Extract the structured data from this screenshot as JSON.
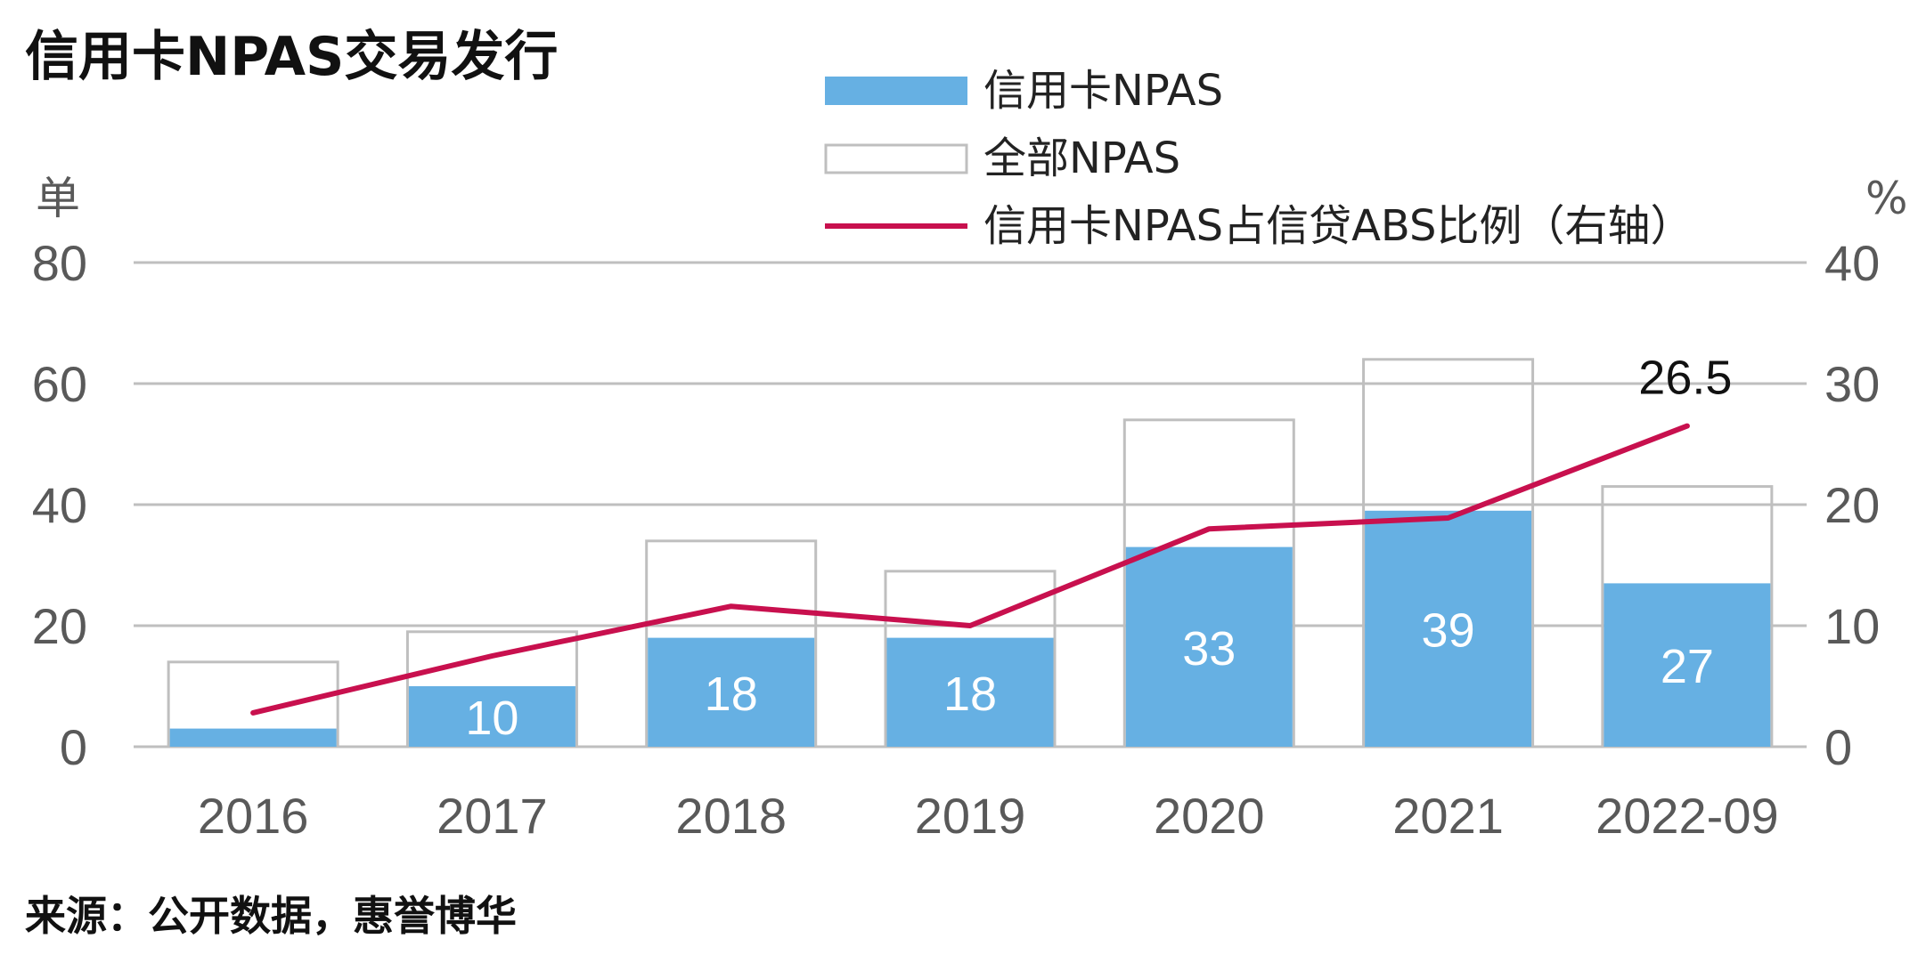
{
  "title": "信用卡NPAS交易发行",
  "source": "来源：公开数据，惠誉博华",
  "colors": {
    "card_bar": "#66b0e3",
    "total_bar_border": "#bfbfbf",
    "ratio_line": "#c8104e",
    "grid": "#bfbfbf"
  },
  "chart_data": {
    "type": "bar",
    "categories": [
      "2016",
      "2017",
      "2018",
      "2019",
      "2020",
      "2021",
      "2022-09"
    ],
    "ylabel": "单",
    "y2label": "%",
    "ylim": [
      0,
      80
    ],
    "y2lim": [
      0,
      40
    ],
    "yticks": [
      "0",
      "20",
      "40",
      "60",
      "80"
    ],
    "y2ticks": [
      "0",
      "10",
      "20",
      "30",
      "40"
    ],
    "grid": true,
    "legend_position": "top-center",
    "series": [
      {
        "name": "信用卡NPAS",
        "type": "bar",
        "axis": "left",
        "values": [
          3,
          10,
          18,
          18,
          33,
          39,
          27
        ],
        "labels": [
          "",
          "10",
          "18",
          "18",
          "33",
          "39",
          "27"
        ]
      },
      {
        "name": "全部NPAS",
        "type": "bar-outline",
        "axis": "left",
        "values": [
          14,
          19,
          34,
          29,
          54,
          64,
          43
        ]
      },
      {
        "name": "信用卡NPAS占信贷ABS比例（右轴）",
        "type": "line",
        "axis": "right",
        "values": [
          2.8,
          7.5,
          11.6,
          10.0,
          18.0,
          18.9,
          26.5
        ],
        "annotation": {
          "index": 6,
          "text": "26.5"
        }
      }
    ]
  }
}
